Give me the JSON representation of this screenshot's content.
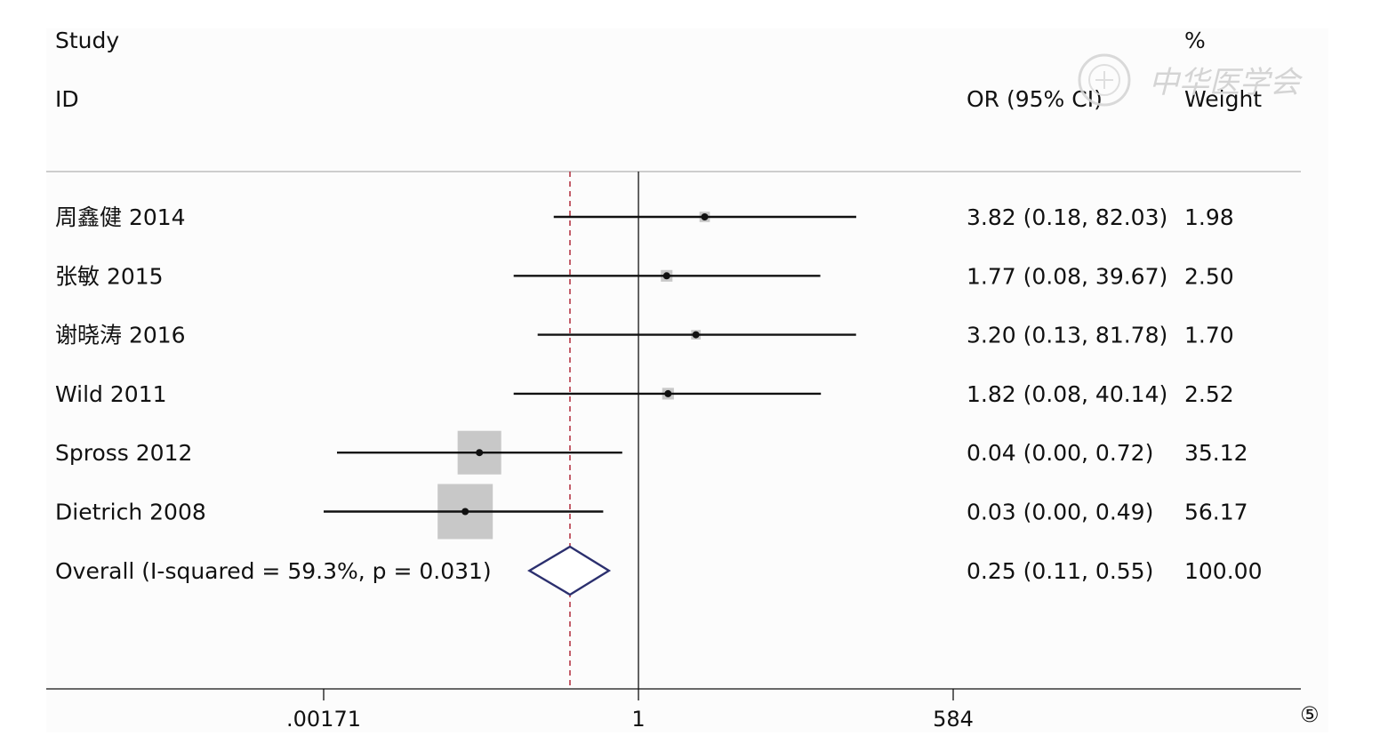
{
  "chart_data": {
    "type": "forest",
    "header": {
      "study": "Study",
      "id": "ID",
      "or_ci": "OR (95% CI)",
      "pct": "%",
      "weight": "Weight"
    },
    "x_scale": "log",
    "xlim": [
      0.00171,
      584
    ],
    "x_ticks": [
      {
        "value": 0.00171,
        "label": ".00171"
      },
      {
        "value": 1,
        "label": "1"
      },
      {
        "value": 584,
        "label": "584"
      }
    ],
    "null_line": 1,
    "studies": [
      {
        "name": "周鑫健 2014",
        "or": 3.82,
        "lo": 0.18,
        "hi": 82.03,
        "ci_text": "3.82 (0.18, 82.03)",
        "weight": 1.98,
        "weight_text": "1.98"
      },
      {
        "name": "张敏 2015",
        "or": 1.77,
        "lo": 0.08,
        "hi": 39.67,
        "ci_text": "1.77 (0.08, 39.67)",
        "weight": 2.5,
        "weight_text": "2.50"
      },
      {
        "name": "谢晓涛 2016",
        "or": 3.2,
        "lo": 0.13,
        "hi": 81.78,
        "ci_text": "3.20 (0.13, 81.78)",
        "weight": 1.7,
        "weight_text": "1.70"
      },
      {
        "name": "Wild 2011",
        "or": 1.82,
        "lo": 0.08,
        "hi": 40.14,
        "ci_text": "1.82 (0.08, 40.14)",
        "weight": 2.52,
        "weight_text": "2.52"
      },
      {
        "name": "Spross 2012",
        "or": 0.04,
        "lo": 0.0,
        "hi": 0.72,
        "ci_text": "0.04 (0.00, 0.72)",
        "weight": 35.12,
        "weight_text": "35.12"
      },
      {
        "name": "Dietrich 2008",
        "or": 0.03,
        "lo": 0.0,
        "hi": 0.49,
        "ci_text": "0.03 (0.00, 0.49)",
        "weight": 56.17,
        "weight_text": "56.17"
      }
    ],
    "overall": {
      "label": "Overall  (I-squared = 59.3%, p = 0.031)",
      "or": 0.25,
      "lo": 0.11,
      "hi": 0.55,
      "ci_text": "0.25 (0.11, 0.55)",
      "weight_text": "100.00"
    },
    "watermark": "中华医学会",
    "panel_number": "⑤"
  },
  "colors": {
    "line": "#111111",
    "box": "#c8c8c8",
    "diamond": "#2b2f6e",
    "dashed": "#b02a3a",
    "rule": "#bdbdbd"
  }
}
